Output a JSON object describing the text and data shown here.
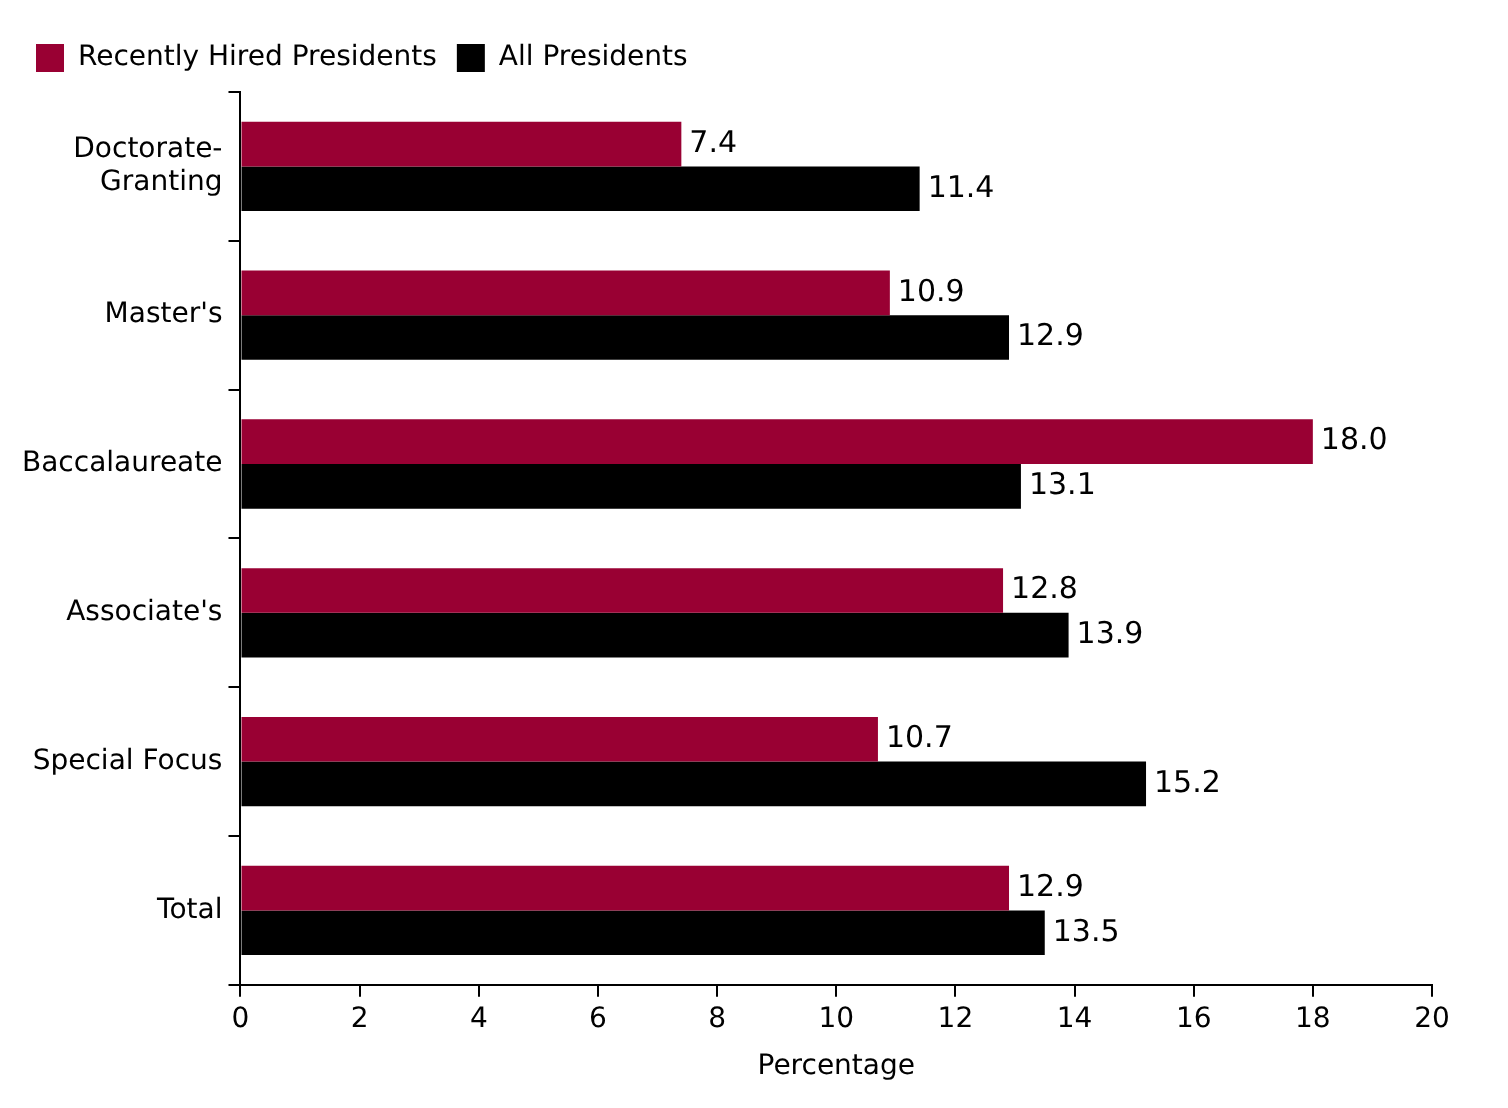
{
  "chart_data": {
    "type": "bar",
    "orientation": "horizontal",
    "xlabel": "Percentage",
    "categories": [
      "Doctorate-Granting",
      "Master's",
      "Baccalaureate",
      "Associate's",
      "Special Focus",
      "Total"
    ],
    "series": [
      {
        "name": "Recently Hired Presidents",
        "color": "#990033",
        "values": [
          7.4,
          10.9,
          18.0,
          12.8,
          10.7,
          12.9
        ],
        "value_labels": [
          "7.4",
          "10.9",
          "18.0",
          "12.8",
          "10.7",
          "12.9"
        ]
      },
      {
        "name": "All Presidents",
        "color": "#000000",
        "values": [
          11.4,
          12.9,
          13.1,
          13.9,
          15.2,
          13.5
        ],
        "value_labels": [
          "11.4",
          "12.9",
          "13.1",
          "13.9",
          "15.2",
          "13.5"
        ]
      }
    ],
    "xlim": [
      0,
      20
    ],
    "xticks": [
      0,
      2,
      4,
      6,
      8,
      10,
      12,
      14,
      16,
      18,
      20
    ],
    "grid": false,
    "legend": "top left"
  }
}
